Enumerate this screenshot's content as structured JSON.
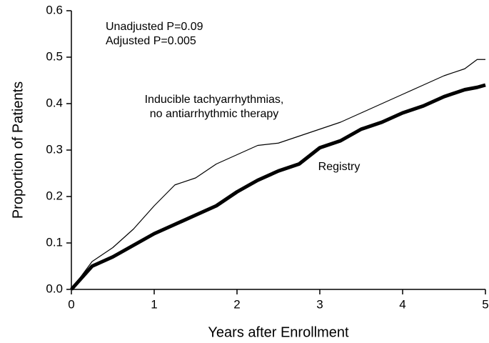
{
  "chart_data": {
    "type": "line",
    "xlabel": "Years after Enrollment",
    "ylabel": "Proportion of Patients",
    "x": [
      0,
      0.25,
      0.5,
      0.75,
      1.0,
      1.25,
      1.5,
      1.75,
      2.0,
      2.25,
      2.5,
      2.75,
      3.0,
      3.25,
      3.5,
      3.75,
      4.0,
      4.25,
      4.5,
      4.75,
      4.9,
      5.0
    ],
    "series": [
      {
        "name": [
          "Inducible tachyarrhythmias,",
          "no antiarrhythmic therapy"
        ],
        "color": "#000000",
        "width": 1.2,
        "values": [
          0,
          0.06,
          0.09,
          0.13,
          0.18,
          0.225,
          0.24,
          0.27,
          0.29,
          0.31,
          0.315,
          0.33,
          0.345,
          0.36,
          0.38,
          0.4,
          0.42,
          0.44,
          0.46,
          0.475,
          0.495,
          0.495
        ]
      },
      {
        "name": [
          "Registry"
        ],
        "color": "#000000",
        "width": 5,
        "values": [
          0,
          0.05,
          0.07,
          0.095,
          0.12,
          0.14,
          0.16,
          0.18,
          0.21,
          0.235,
          0.255,
          0.27,
          0.305,
          0.32,
          0.345,
          0.36,
          0.38,
          0.395,
          0.415,
          0.43,
          0.435,
          0.44
        ]
      }
    ],
    "annotations": [
      "Unadjusted P=0.09",
      "Adjusted P=0.005"
    ],
    "xlim": [
      0,
      5
    ],
    "xticks": [
      0,
      1,
      2,
      3,
      4,
      5
    ],
    "ylim": [
      0,
      0.6
    ],
    "yticks": [
      {
        "value": 0,
        "label": "0.0"
      },
      0.1,
      0.2,
      0.3,
      0.4,
      0.5,
      0.6
    ],
    "grid": false
  }
}
